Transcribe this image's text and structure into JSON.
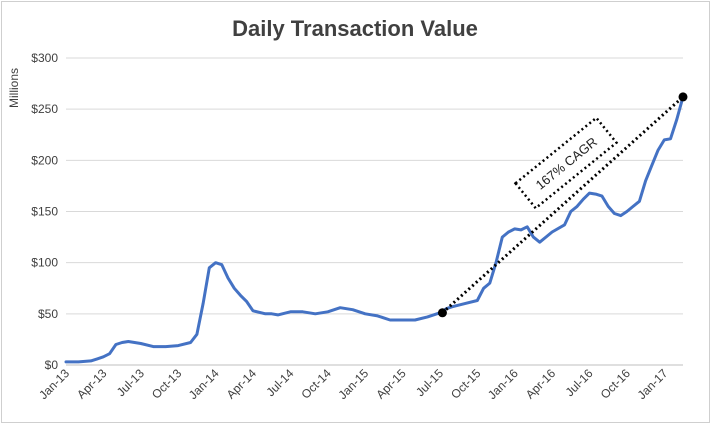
{
  "chart_data": {
    "type": "line",
    "title": "Daily Transaction Value",
    "ylabel": "Millions",
    "xlabel": "",
    "ylim": [
      0,
      300
    ],
    "y_ticks": [
      0,
      50,
      100,
      150,
      200,
      250,
      300
    ],
    "y_tick_labels": [
      "$0",
      "$50",
      "$100",
      "$150",
      "$200",
      "$250",
      "$300"
    ],
    "x_range": [
      0,
      49.5
    ],
    "x_tick_labels": [
      "Jan-13",
      "Apr-13",
      "Jul-13",
      "Oct-13",
      "Jan-14",
      "Apr-14",
      "Jul-14",
      "Oct-14",
      "Jan-15",
      "Apr-15",
      "Jul-15",
      "Oct-15",
      "Jan-16",
      "Apr-16",
      "Jul-16",
      "Oct-16",
      "Jan-17"
    ],
    "x_tick_months": [
      0,
      3,
      6,
      9,
      12,
      15,
      18,
      21,
      24,
      27,
      30,
      33,
      36,
      39,
      42,
      45,
      48
    ],
    "grid": true,
    "series": [
      {
        "name": "Daily Transaction Value",
        "color": "#4472C4",
        "x": [
          0,
          1,
          2,
          2.5,
          3,
          3.5,
          4,
          4.5,
          5,
          5.5,
          6,
          7,
          8,
          9,
          10,
          10.5,
          11,
          11.5,
          12,
          12.5,
          13,
          13.5,
          14,
          14.5,
          15,
          16,
          16.5,
          17,
          18,
          19,
          20,
          21,
          22,
          23,
          24,
          25,
          26,
          27,
          28,
          29,
          30,
          30.5,
          31,
          32,
          33,
          33.5,
          34,
          34.5,
          35,
          35.5,
          36,
          36.5,
          37,
          37.5,
          38,
          38.5,
          39,
          40,
          40.5,
          41,
          41.5,
          42,
          42.5,
          43,
          43.5,
          44,
          44.5,
          45,
          45.5,
          46,
          46.5,
          47,
          47.5,
          48,
          48.5,
          49,
          49.5
        ],
        "values": [
          3,
          3,
          4,
          6,
          8,
          11,
          20,
          22,
          23,
          22,
          21,
          18,
          18,
          19,
          22,
          30,
          60,
          95,
          100,
          98,
          85,
          75,
          68,
          62,
          53,
          50,
          50,
          49,
          52,
          52,
          50,
          52,
          56,
          54,
          50,
          48,
          44,
          44,
          44,
          47,
          51,
          55,
          57,
          60,
          63,
          75,
          80,
          100,
          125,
          130,
          133,
          132,
          135,
          125,
          120,
          125,
          130,
          137,
          150,
          155,
          162,
          168,
          167,
          165,
          155,
          148,
          146,
          150,
          155,
          160,
          180,
          195,
          210,
          220,
          221,
          240,
          262
        ]
      }
    ],
    "trend_line": {
      "x_start": 30.2,
      "y_start": 51,
      "x_end": 49.5,
      "y_end": 262
    },
    "annotation": {
      "text": "167% CAGR"
    }
  }
}
